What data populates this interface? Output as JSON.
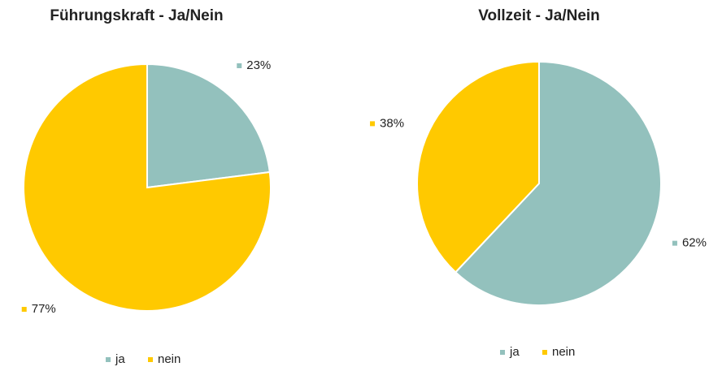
{
  "chart_data": [
    {
      "type": "pie",
      "title": "Führungskraft - Ja/Nein",
      "categories": [
        "ja",
        "nein"
      ],
      "values": [
        23,
        77
      ],
      "value_labels": [
        "23%",
        "77%"
      ],
      "colors": [
        "#93c1bd",
        "#ffc900"
      ]
    },
    {
      "type": "pie",
      "title": "Vollzeit - Ja/Nein",
      "categories": [
        "ja",
        "nein"
      ],
      "values": [
        62,
        38
      ],
      "value_labels": [
        "62%",
        "38%"
      ],
      "colors": [
        "#93c1bd",
        "#ffc900"
      ]
    }
  ]
}
